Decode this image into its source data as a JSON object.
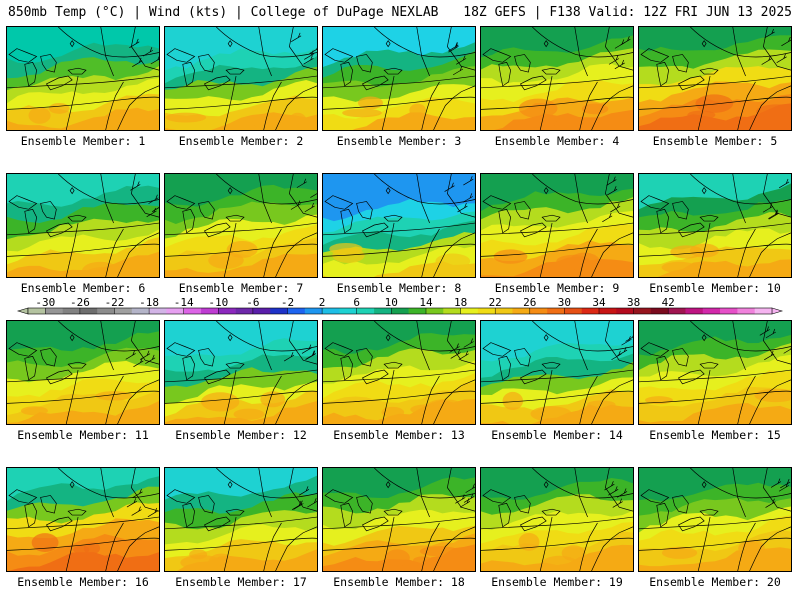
{
  "header": {
    "left_title": "850mb Temp (°C) | Wind (kts) | College of DuPage NEXLAB",
    "right_title": "18Z GEFS | F138 Valid: 12Z FRI JUN 13 2025"
  },
  "colorbar": {
    "tick_labels": [
      "-30",
      "-26",
      "-22",
      "-18",
      "-14",
      "-10",
      "-6",
      "-2",
      "2",
      "6",
      "10",
      "14",
      "18",
      "22",
      "26",
      "30",
      "34",
      "38",
      "42"
    ],
    "colors": [
      "#b4c3a0",
      "#969696",
      "#828282",
      "#6e6e6e",
      "#8c8c8c",
      "#a0a0a0",
      "#b4b4c8",
      "#d2b4e6",
      "#e6a0f0",
      "#dc64e6",
      "#be3cd2",
      "#8c28be",
      "#6e28aa",
      "#5a1eaa",
      "#1e32c8",
      "#1e64f0",
      "#1e96f0",
      "#1ebee6",
      "#1ed2d2",
      "#1ed2b4",
      "#14b482",
      "#14a050",
      "#3cb428",
      "#78c81e",
      "#b4dc1e",
      "#e6f01e",
      "#f0dc14",
      "#f0c814",
      "#f5aa14",
      "#f58c14",
      "#f06e14",
      "#e65014",
      "#dc2814",
      "#c81414",
      "#b40a1e",
      "#96141e",
      "#7a0a1e",
      "#a01450",
      "#be1482",
      "#d228aa",
      "#e650c8",
      "#f082dc",
      "#f5b4f0"
    ],
    "colors_per_label": 2
  },
  "panels": [
    {
      "label": "Ensemble Member: 1",
      "theme": [
        "#00c8aa",
        "#14b482",
        "#50be28",
        "#b4dc1e",
        "#e6f01e",
        "#f0c814",
        "#f5aa14"
      ],
      "split": 0.25
    },
    {
      "label": "Ensemble Member: 2",
      "theme": [
        "#1ed2d2",
        "#1ed2b4",
        "#14b482",
        "#78c81e",
        "#e6f01e",
        "#f0c814",
        "#f5aa14"
      ],
      "split": 0.35
    },
    {
      "label": "Ensemble Member: 3",
      "theme": [
        "#1ed2e6",
        "#14b482",
        "#3cb428",
        "#78c81e",
        "#e6f01e",
        "#f0dc14",
        "#f5aa14"
      ],
      "split": 0.3
    },
    {
      "label": "Ensemble Member: 4",
      "theme": [
        "#14a050",
        "#3cb428",
        "#b4dc1e",
        "#e6f01e",
        "#f0dc14",
        "#f5aa14",
        "#f58c14"
      ],
      "split": 0.2
    },
    {
      "label": "Ensemble Member: 5",
      "theme": [
        "#14a050",
        "#3cb428",
        "#b4dc1e",
        "#f0dc14",
        "#f5aa14",
        "#f58c14",
        "#f06e14"
      ],
      "split": 0.15
    },
    {
      "label": "Ensemble Member: 6",
      "theme": [
        "#1ed2b4",
        "#14b482",
        "#3cb428",
        "#b4dc1e",
        "#e6f01e",
        "#f0c814",
        "#f5aa14"
      ],
      "split": 0.25
    },
    {
      "label": "Ensemble Member: 7",
      "theme": [
        "#14a050",
        "#3cb428",
        "#78c81e",
        "#e6f01e",
        "#f0dc14",
        "#f0c814",
        "#f5aa14"
      ],
      "split": 0.2
    },
    {
      "label": "Ensemble Member: 8",
      "theme": [
        "#1e96f0",
        "#1ed2e6",
        "#1ed2b4",
        "#14b482",
        "#b4dc1e",
        "#e6f01e",
        "#f0c814"
      ],
      "split": 0.45
    },
    {
      "label": "Ensemble Member: 9",
      "theme": [
        "#14a050",
        "#3cb428",
        "#b4dc1e",
        "#e6f01e",
        "#f0dc14",
        "#f5aa14",
        "#f58c14"
      ],
      "split": 0.2
    },
    {
      "label": "Ensemble Member: 10",
      "theme": [
        "#1ed2b4",
        "#14a050",
        "#3cb428",
        "#b4dc1e",
        "#e6f01e",
        "#f0c814",
        "#f5aa14"
      ],
      "split": 0.25
    },
    {
      "label": "Ensemble Member: 11",
      "theme": [
        "#14a050",
        "#3cb428",
        "#78c81e",
        "#e6f01e",
        "#f0dc14",
        "#f0c814",
        "#f5aa14"
      ],
      "split": 0.25
    },
    {
      "label": "Ensemble Member: 12",
      "theme": [
        "#1ed2d2",
        "#1ed2b4",
        "#14b482",
        "#78c81e",
        "#e6f01e",
        "#f0c814",
        "#f5aa14"
      ],
      "split": 0.35
    },
    {
      "label": "Ensemble Member: 13",
      "theme": [
        "#14a050",
        "#3cb428",
        "#b4dc1e",
        "#e6f01e",
        "#f0dc14",
        "#f0c814",
        "#f5aa14"
      ],
      "split": 0.2
    },
    {
      "label": "Ensemble Member: 14",
      "theme": [
        "#1ed2d2",
        "#1ed2b4",
        "#14b482",
        "#78c81e",
        "#e6f01e",
        "#f0c814",
        "#f5aa14"
      ],
      "split": 0.35
    },
    {
      "label": "Ensemble Member: 15",
      "theme": [
        "#14a050",
        "#3cb428",
        "#b4dc1e",
        "#e6f01e",
        "#f0dc14",
        "#f0c814",
        "#f5aa14"
      ],
      "split": 0.2
    },
    {
      "label": "Ensemble Member: 16",
      "theme": [
        "#1ed2b4",
        "#14b482",
        "#78c81e",
        "#f0dc14",
        "#f5aa14",
        "#f58c14",
        "#f06e14"
      ],
      "split": 0.15
    },
    {
      "label": "Ensemble Member: 17",
      "theme": [
        "#1ed2d2",
        "#14b482",
        "#3cb428",
        "#b4dc1e",
        "#e6f01e",
        "#f0c814",
        "#f5aa14"
      ],
      "split": 0.25
    },
    {
      "label": "Ensemble Member: 18",
      "theme": [
        "#14a050",
        "#3cb428",
        "#b4dc1e",
        "#e6f01e",
        "#f0c814",
        "#f5aa14",
        "#f58c14"
      ],
      "split": 0.2
    },
    {
      "label": "Ensemble Member: 19",
      "theme": [
        "#14a050",
        "#3cb428",
        "#b4dc1e",
        "#e6f01e",
        "#f0dc14",
        "#f0c814",
        "#f5aa14"
      ],
      "split": 0.2
    },
    {
      "label": "Ensemble Member: 20",
      "theme": [
        "#14a050",
        "#3cb428",
        "#78c81e",
        "#e6f01e",
        "#f0dc14",
        "#f0c814",
        "#f5aa14"
      ],
      "split": 0.2
    }
  ]
}
